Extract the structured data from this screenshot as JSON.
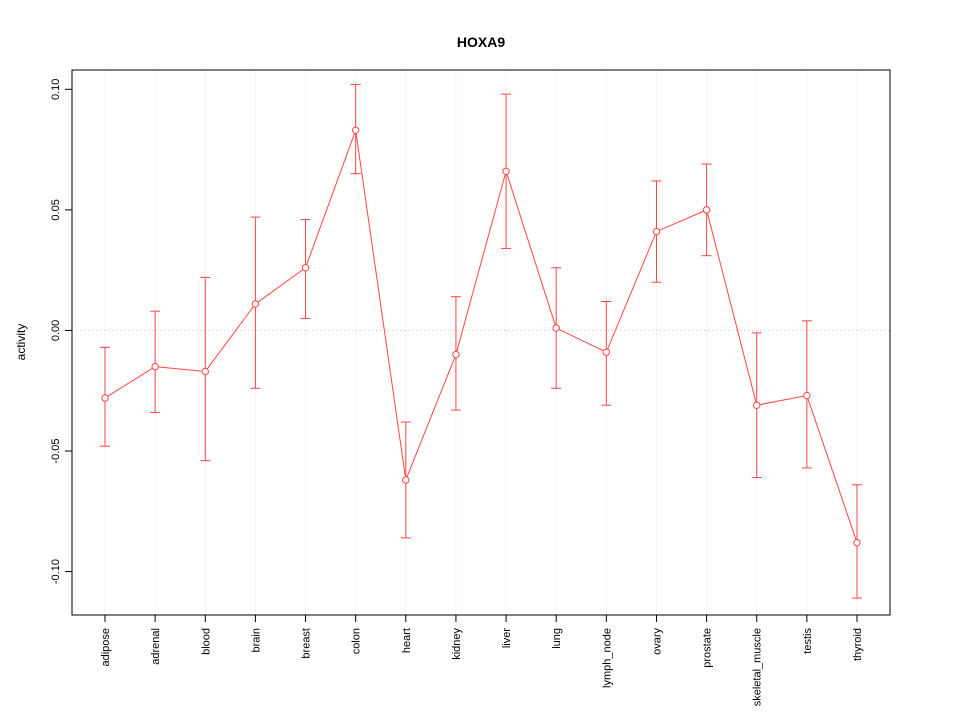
{
  "chart_data": {
    "type": "line",
    "title": "HOXA9",
    "xlabel": "",
    "ylabel": "activity",
    "categories": [
      "adipose",
      "adrenal",
      "blood",
      "brain",
      "breast",
      "colon",
      "heart",
      "kidney",
      "liver",
      "lung",
      "lymph_node",
      "ovary",
      "prostate",
      "skeletal_muscle",
      "testis",
      "thyroid"
    ],
    "series": [
      {
        "name": "activity",
        "values": [
          -0.028,
          -0.015,
          -0.017,
          0.011,
          0.026,
          0.083,
          -0.062,
          -0.01,
          0.066,
          0.001,
          -0.009,
          0.041,
          0.05,
          -0.031,
          -0.027,
          -0.088
        ],
        "error_high": [
          -0.007,
          0.008,
          0.022,
          0.047,
          0.046,
          0.102,
          -0.038,
          0.014,
          0.098,
          0.026,
          0.012,
          0.062,
          0.069,
          -0.001,
          0.004,
          -0.064
        ],
        "error_low": [
          -0.048,
          -0.034,
          -0.054,
          -0.024,
          0.005,
          0.065,
          -0.086,
          -0.033,
          0.034,
          -0.024,
          -0.031,
          0.02,
          0.031,
          -0.061,
          -0.057,
          -0.111
        ]
      }
    ],
    "ylim": [
      -0.118,
      0.108
    ],
    "yticks": [
      -0.1,
      -0.05,
      0.0,
      0.05,
      0.1
    ],
    "ytick_labels": [
      "-0.10",
      "-0.05",
      "0.00",
      "0.05",
      "0.10"
    ],
    "marker": "open-circle",
    "legend_position": "none",
    "grid": "vertical-dotted-per-category",
    "colors": {
      "series": "#ff4444",
      "grid_line": "#d6d6d6",
      "zero_line": "#e2bcbc",
      "axis": "#000000",
      "background": "#ffffff"
    }
  }
}
